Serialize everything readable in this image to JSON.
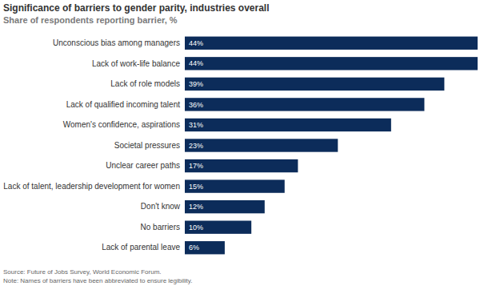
{
  "chart_data": {
    "type": "bar",
    "orientation": "horizontal",
    "title": "Significance of barriers to gender parity, industries overall",
    "subtitle": "Share of respondents reporting barrier, %",
    "categories": [
      "Unconscious bias among managers",
      "Lack of work-life balance",
      "Lack of role models",
      "Lack of qualified incoming talent",
      "Women's confidence, aspirations",
      "Societal pressures",
      "Unclear career paths",
      "Lack of talent, leadership development for women",
      "Don't know",
      "No barriers",
      "Lack of parental leave"
    ],
    "values": [
      44,
      44,
      39,
      36,
      31,
      23,
      17,
      15,
      12,
      10,
      6
    ],
    "value_labels": [
      "44%",
      "44%",
      "39%",
      "36%",
      "31%",
      "23%",
      "17%",
      "15%",
      "12%",
      "10%",
      "6%"
    ],
    "data_labels": true,
    "color": "#0c2c5a",
    "xlim": [
      0,
      44
    ],
    "tick_labels": "y",
    "annotations": [
      "Source: Future of Jobs Survey, World Economic Forum.",
      "Note: Names of barriers have been abbreviated to ensure legibility."
    ]
  }
}
